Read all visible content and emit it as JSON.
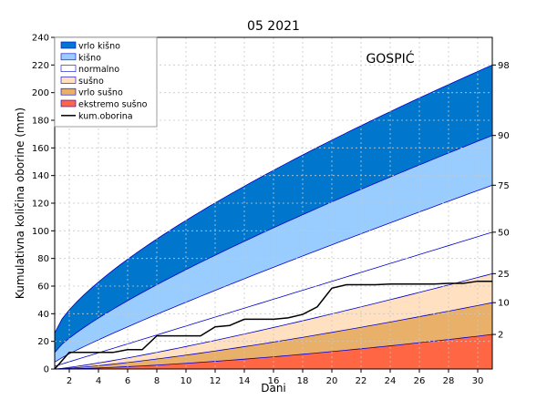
{
  "chart_data": {
    "type": "area",
    "title": "05 2021",
    "station": "GOSPIĆ",
    "xlabel": "Dani",
    "ylabel": "Kumulativna količina oborine (mm)",
    "xlim": [
      1,
      31
    ],
    "ylim": [
      0,
      240
    ],
    "grid": true,
    "legend_position": "top-left",
    "x_ticks": [
      2,
      4,
      6,
      8,
      10,
      12,
      14,
      16,
      18,
      20,
      22,
      24,
      26,
      28,
      30
    ],
    "y_ticks": [
      0,
      20,
      40,
      60,
      80,
      100,
      120,
      140,
      160,
      180,
      200,
      220,
      240
    ],
    "percentile_labels": [
      {
        "label": "98",
        "y": 220
      },
      {
        "label": "90",
        "y": 169
      },
      {
        "label": "75",
        "y": 133
      },
      {
        "label": "50",
        "y": 99
      },
      {
        "label": "25",
        "y": 69
      },
      {
        "label": "10",
        "y": 48
      },
      {
        "label": "2",
        "y": 25
      }
    ],
    "percentile_curves": {
      "p2": {
        "y1": 0,
        "y31": 25,
        "exp": 1.5
      },
      "p10": {
        "y1": 0,
        "y31": 48,
        "exp": 1.3
      },
      "p25": {
        "y1": 0,
        "y31": 69,
        "exp": 1.2
      },
      "p50": {
        "y1": 2,
        "y31": 99,
        "exp": 1.0
      },
      "p75": {
        "y1": 5,
        "y31": 133,
        "exp": 0.9
      },
      "p90": {
        "y1": 12,
        "y31": 169,
        "exp": 0.8
      },
      "p98": {
        "y1": 26,
        "y31": 220,
        "exp": 0.72
      }
    },
    "bands": [
      {
        "name": "vrlo kišno",
        "from": "p90",
        "to": "p98",
        "color": "#0077cc"
      },
      {
        "name": "kišno",
        "from": "p75",
        "to": "p90",
        "color": "#99ccff"
      },
      {
        "name": "normalno",
        "from": "p25",
        "to": "p75",
        "color": "#ffffff"
      },
      {
        "name": "sušno",
        "from": "p10",
        "to": "p25",
        "color": "#ffe0c0"
      },
      {
        "name": "vrlo sušno",
        "from": "p2",
        "to": "p10",
        "color": "#e8b068"
      },
      {
        "name": "ekstremo sušno",
        "from": "zero",
        "to": "p2",
        "color": "#ff6644"
      }
    ],
    "percentile_line_color": "#0000cc",
    "series": [
      {
        "name": "kum.oborina",
        "color": "#000000",
        "x": [
          1,
          2,
          3,
          4,
          5,
          6,
          7,
          8,
          9,
          10,
          11,
          12,
          13,
          14,
          15,
          16,
          17,
          18,
          19,
          20,
          21,
          22,
          23,
          24,
          25,
          26,
          27,
          28,
          29,
          30,
          31
        ],
        "values": [
          0,
          12,
          12,
          12,
          12,
          14,
          14,
          24,
          24,
          24,
          24,
          30.5,
          31.5,
          36,
          36,
          36,
          37,
          39.5,
          45,
          58.5,
          61,
          61,
          61,
          61.5,
          61.5,
          61.5,
          61.5,
          62,
          62,
          63.5,
          63.5
        ]
      }
    ],
    "legend": [
      {
        "label": "vrlo kišno",
        "kind": "patch",
        "color": "#0077cc"
      },
      {
        "label": "kišno",
        "kind": "patch",
        "color": "#99ccff"
      },
      {
        "label": "normalno",
        "kind": "patch",
        "color": "#ffffff"
      },
      {
        "label": "sušno",
        "kind": "patch",
        "color": "#ffe0c0"
      },
      {
        "label": "vrlo sušno",
        "kind": "patch",
        "color": "#e8b068"
      },
      {
        "label": "ekstremo sušno",
        "kind": "patch",
        "color": "#ff6644"
      },
      {
        "label": "kum.oborina",
        "kind": "line",
        "color": "#000000"
      }
    ]
  }
}
